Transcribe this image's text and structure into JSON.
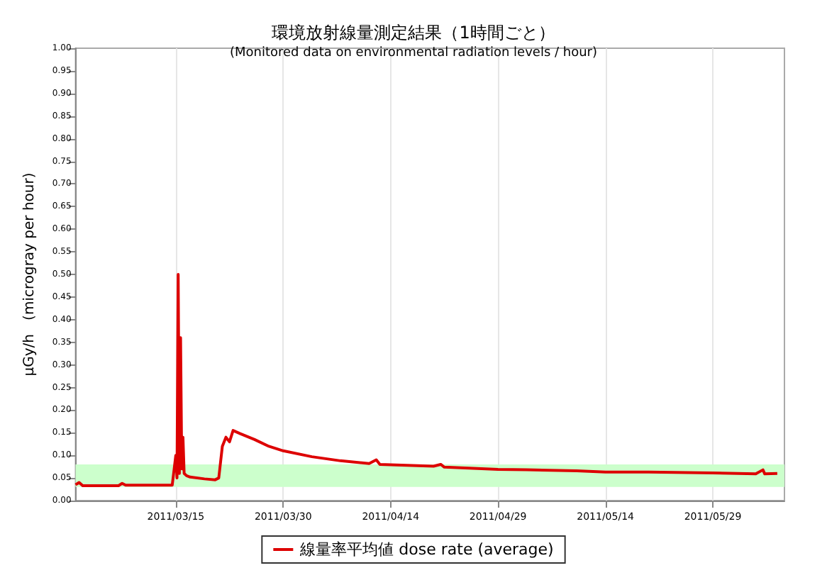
{
  "chart_data": {
    "type": "line",
    "title": "環境放射線量測定結果（1時間ごと）",
    "subtitle": "(Monitored data on environmental radiation levels / hour)",
    "ylabel": "μGy/h   (microgray per hour)",
    "x": [
      "2011-03-01",
      "2011-03-01T12:00",
      "2011-03-02",
      "2011-03-07",
      "2011-03-07T12:00",
      "2011-03-08",
      "2011-03-14T12:00",
      "2011-03-15T00:00",
      "2011-03-15T04:00",
      "2011-03-15T08:00",
      "2011-03-15T12:00",
      "2011-03-15T16:00",
      "2011-03-15T20:00",
      "2011-03-16T00:00",
      "2011-03-16T04:00",
      "2011-03-16T12:00",
      "2011-03-17",
      "2011-03-19",
      "2011-03-20T12:00",
      "2011-03-21",
      "2011-03-21T12:00",
      "2011-03-22",
      "2011-03-22T12:00",
      "2011-03-23",
      "2011-03-24",
      "2011-03-26",
      "2011-03-28",
      "2011-03-30",
      "2011-04-03",
      "2011-04-07",
      "2011-04-11",
      "2011-04-12",
      "2011-04-12T12:00",
      "2011-04-20",
      "2011-04-21",
      "2011-04-21T12:00",
      "2011-04-29",
      "2011-05-03",
      "2011-05-10",
      "2011-05-14",
      "2011-05-20",
      "2011-05-29",
      "2011-06-04",
      "2011-06-05",
      "2011-06-05T06:00",
      "2011-06-07"
    ],
    "series": [
      {
        "name": "線量率平均値 dose rate (average)",
        "color": "#dd0000",
        "values": [
          0.035,
          0.04,
          0.033,
          0.033,
          0.038,
          0.034,
          0.034,
          0.1,
          0.05,
          0.5,
          0.06,
          0.36,
          0.07,
          0.14,
          0.06,
          0.055,
          0.052,
          0.048,
          0.046,
          0.05,
          0.12,
          0.14,
          0.13,
          0.155,
          0.148,
          0.135,
          0.12,
          0.11,
          0.097,
          0.088,
          0.082,
          0.09,
          0.08,
          0.076,
          0.08,
          0.074,
          0.069,
          0.068,
          0.066,
          0.063,
          0.063,
          0.061,
          0.059,
          0.068,
          0.059,
          0.06
        ]
      }
    ],
    "xlim": [
      "2011-03-01",
      "2011-06-08"
    ],
    "xticks": [
      {
        "value": "2011-03-15",
        "label": "2011/03/15"
      },
      {
        "value": "2011-03-30",
        "label": "2011/03/30"
      },
      {
        "value": "2011-04-14",
        "label": "2011/04/14"
      },
      {
        "value": "2011-04-29",
        "label": "2011/04/29"
      },
      {
        "value": "2011-05-14",
        "label": "2011/05/14"
      },
      {
        "value": "2011-05-29",
        "label": "2011/05/29"
      }
    ],
    "ylim": [
      0,
      1
    ],
    "yticks": [
      {
        "value": 0,
        "label": "0.00"
      },
      {
        "value": 0.05,
        "label": "0.05"
      },
      {
        "value": 0.1,
        "label": "0.10"
      },
      {
        "value": 0.15,
        "label": "0.15"
      },
      {
        "value": 0.2,
        "label": "0.20"
      },
      {
        "value": 0.25,
        "label": "0.25"
      },
      {
        "value": 0.3,
        "label": "0.30"
      },
      {
        "value": 0.35,
        "label": "0.35"
      },
      {
        "value": 0.4,
        "label": "0.40"
      },
      {
        "value": 0.45,
        "label": "0.45"
      },
      {
        "value": 0.5,
        "label": "0.50"
      },
      {
        "value": 0.55,
        "label": "0.55"
      },
      {
        "value": 0.6,
        "label": "0.60"
      },
      {
        "value": 0.65,
        "label": "0.65"
      },
      {
        "value": 0.7,
        "label": "0.70"
      },
      {
        "value": 0.75,
        "label": "0.75"
      },
      {
        "value": 0.8,
        "label": "0.80"
      },
      {
        "value": 0.85,
        "label": "0.85"
      },
      {
        "value": 0.9,
        "label": "0.90"
      },
      {
        "value": 0.95,
        "label": "0.95"
      },
      {
        "value": 1,
        "label": "1.00"
      }
    ],
    "bands": [
      {
        "axis": "y",
        "from": 0.03,
        "to": 0.08,
        "color": "#ccffcc"
      }
    ],
    "grid": "x",
    "legend": "bottom",
    "marker": "none",
    "line_style": "solid"
  }
}
